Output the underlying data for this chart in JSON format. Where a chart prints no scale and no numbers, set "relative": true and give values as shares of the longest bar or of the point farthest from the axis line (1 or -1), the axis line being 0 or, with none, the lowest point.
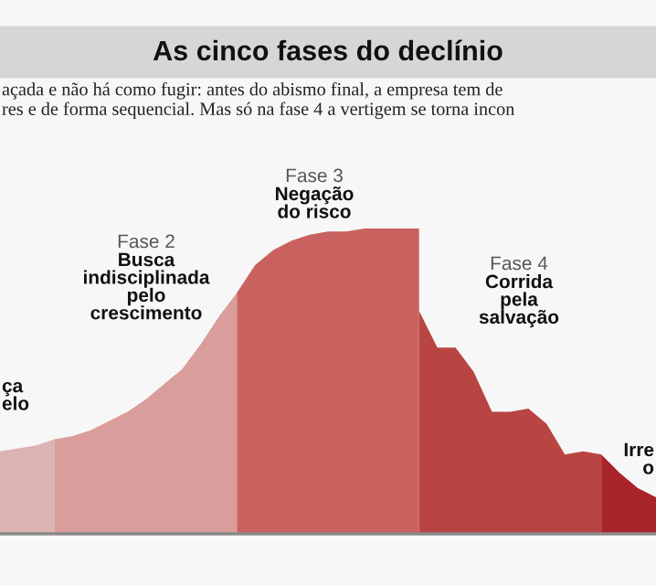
{
  "chart_data": {
    "type": "area",
    "title": "As cinco fases do declínio",
    "subtitle": "açada e não há como fugir: antes do abismo final, a empresa tem de\nres e de forma sequencial. Mas só na fase 4 a vertigem se torna incon",
    "relative": true,
    "categories": [
      null,
      null,
      null,
      null,
      null,
      null,
      null,
      null,
      null,
      null,
      null,
      null,
      null,
      null,
      null,
      null,
      null,
      null,
      null,
      null,
      null,
      null,
      null,
      null,
      null,
      null,
      null,
      null,
      null,
      null,
      null,
      null,
      null,
      null,
      null,
      null,
      null
    ],
    "series": [
      {
        "color": "#dcb3b2",
        "values": [
          0.27,
          0.28,
          0.29,
          0.31,
          null,
          null,
          null,
          null,
          null,
          null,
          null,
          null,
          null,
          null,
          null,
          null,
          null,
          null,
          null,
          null,
          null,
          null,
          null,
          null,
          null,
          null,
          null,
          null,
          null,
          null,
          null,
          null,
          null,
          null,
          null,
          null,
          null
        ]
      },
      {
        "color": "#d99d9b",
        "values": [
          null,
          null,
          null,
          0.31,
          0.32,
          0.34,
          0.37,
          0.4,
          0.44,
          0.49,
          0.54,
          0.62,
          0.71,
          0.79,
          null,
          null,
          null,
          null,
          null,
          null,
          null,
          null,
          null,
          null,
          null,
          null,
          null,
          null,
          null,
          null,
          null,
          null,
          null,
          null,
          null,
          null,
          null
        ]
      },
      {
        "color": "#c9625f",
        "values": [
          null,
          null,
          null,
          null,
          null,
          null,
          null,
          null,
          null,
          null,
          null,
          null,
          null,
          0.79,
          0.88,
          0.93,
          0.96,
          0.98,
          0.99,
          0.99,
          1.0,
          1.0,
          1.0,
          1.0,
          null,
          null,
          null,
          null,
          null,
          null,
          null,
          null,
          null,
          null,
          null,
          null,
          null
        ]
      },
      {
        "color": "#b84542",
        "values": [
          null,
          null,
          null,
          null,
          null,
          null,
          null,
          null,
          null,
          null,
          null,
          null,
          null,
          null,
          null,
          null,
          null,
          null,
          null,
          null,
          null,
          null,
          null,
          0.73,
          0.61,
          0.61,
          0.53,
          0.4,
          0.4,
          0.41,
          0.36,
          0.26,
          0.27,
          0.26,
          null,
          null,
          null
        ]
      },
      {
        "color": "#a8232a",
        "values": [
          null,
          null,
          null,
          null,
          null,
          null,
          null,
          null,
          null,
          null,
          null,
          null,
          null,
          null,
          null,
          null,
          null,
          null,
          null,
          null,
          null,
          null,
          null,
          null,
          null,
          null,
          null,
          null,
          null,
          null,
          null,
          null,
          null,
          0.26,
          0.2,
          0.15,
          0.12
        ]
      }
    ],
    "annotations": [
      "ça\nelo",
      "Fase 2\nBusca\nindisciplinada\npelo\ncrescimento",
      "Fase 3\nNegação\ndo risco",
      "Fase 4\nCorrida\npela\nsalvação",
      "Irre\no"
    ]
  }
}
